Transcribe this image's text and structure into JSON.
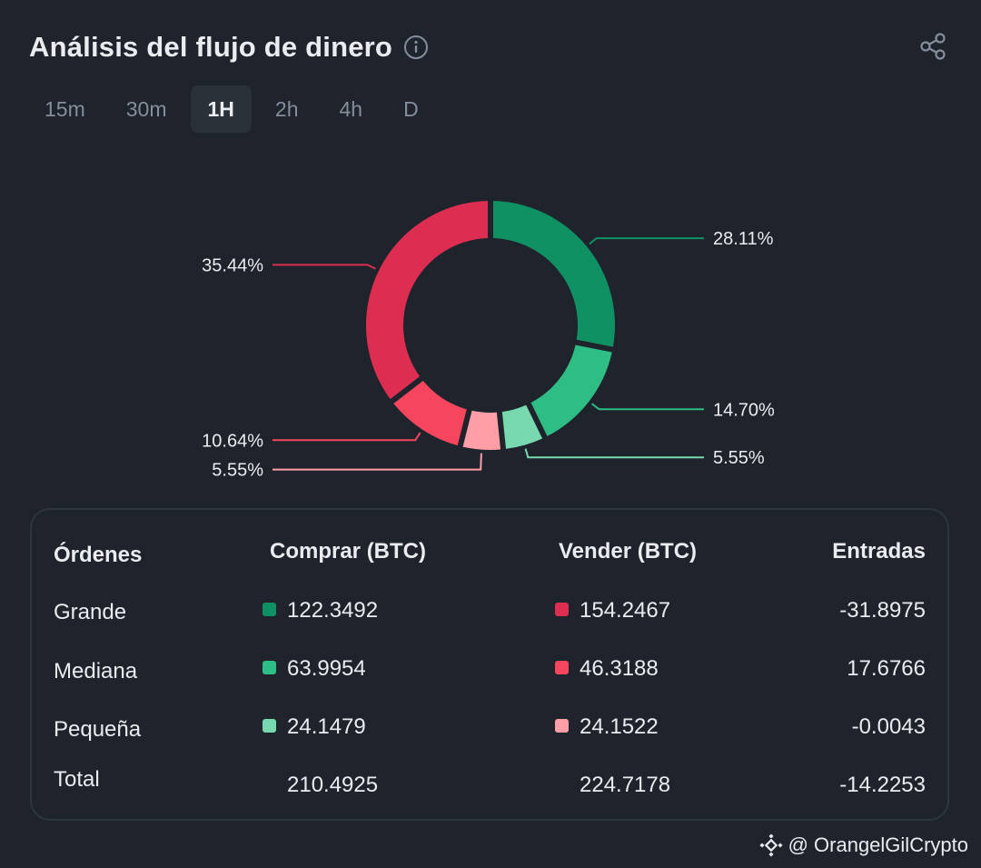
{
  "header": {
    "title": "Análisis del flujo de dinero",
    "info_icon": "info-circle-icon",
    "share_icon": "share-icon"
  },
  "tabs": [
    {
      "label": "15m",
      "active": false
    },
    {
      "label": "30m",
      "active": false
    },
    {
      "label": "1H",
      "active": true
    },
    {
      "label": "2h",
      "active": false
    },
    {
      "label": "4h",
      "active": false
    },
    {
      "label": "D",
      "active": false
    }
  ],
  "chart_data": {
    "type": "pie",
    "style": "donut",
    "slices": [
      {
        "name": "Comprar Grande",
        "value": 28.11,
        "label": "28.11%",
        "color": "#0f9163"
      },
      {
        "name": "Comprar Mediana",
        "value": 14.7,
        "label": "14.70%",
        "color": "#2ebd85"
      },
      {
        "name": "Comprar Pequeña",
        "value": 5.55,
        "label": "5.55%",
        "color": "#78d8af"
      },
      {
        "name": "Vender Pequeña",
        "value": 5.55,
        "label": "5.55%",
        "color": "#ff9ea7"
      },
      {
        "name": "Vender Mediana",
        "value": 10.64,
        "label": "10.64%",
        "color": "#f6465d"
      },
      {
        "name": "Vender Grande",
        "value": 35.44,
        "label": "35.44%",
        "color": "#dd2e52"
      }
    ]
  },
  "table": {
    "headers": {
      "orders": "Órdenes",
      "buy": "Comprar (BTC)",
      "sell": "Vender (BTC)",
      "inflow": "Entradas"
    },
    "rows": [
      {
        "label": "Grande",
        "buy": "122.3492",
        "sell": "154.2467",
        "inflow": "-31.8975",
        "buy_color": "#0f9163",
        "sell_color": "#dd2e52"
      },
      {
        "label": "Mediana",
        "buy": "63.9954",
        "sell": "46.3188",
        "inflow": "17.6766",
        "buy_color": "#2ebd85",
        "sell_color": "#f6465d"
      },
      {
        "label": "Pequeña",
        "buy": "24.1479",
        "sell": "24.1522",
        "inflow": "-0.0043",
        "buy_color": "#78d8af",
        "sell_color": "#ff9ea7"
      }
    ],
    "total": {
      "label": "Total",
      "buy": "210.4925",
      "sell": "224.7178",
      "inflow": "-14.2253"
    }
  },
  "watermark": {
    "text": "@ OrangelGilCrypto",
    "icon": "binance-logo-icon"
  }
}
